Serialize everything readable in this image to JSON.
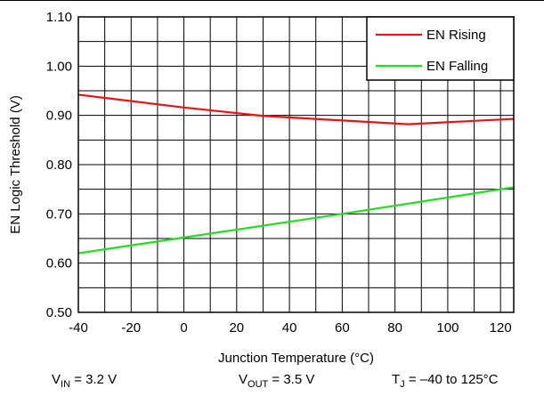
{
  "chart_data": {
    "type": "line",
    "title": "",
    "xlabel": "Junction Temperature (°C)",
    "ylabel": "EN Logic Threshold (V)",
    "xlim": [
      -40,
      125
    ],
    "ylim": [
      0.5,
      1.1
    ],
    "x_ticks": [
      -40,
      -20,
      0,
      20,
      40,
      60,
      80,
      100,
      120
    ],
    "x_tick_labels": [
      "-40",
      "-20",
      "0",
      "20",
      "40",
      "60",
      "80",
      "100",
      "120"
    ],
    "y_ticks": [
      0.5,
      0.6,
      0.7,
      0.8,
      0.9,
      1.0,
      1.1
    ],
    "y_tick_labels": [
      "0.50",
      "0.60",
      "0.70",
      "0.80",
      "0.90",
      "1.00",
      "1.10"
    ],
    "grid": true,
    "legend_position": "top-right",
    "series": [
      {
        "name": "EN Rising",
        "color": "#ee1111",
        "x": [
          -40,
          0,
          30,
          85,
          125
        ],
        "y": [
          0.942,
          0.916,
          0.899,
          0.882,
          0.893
        ]
      },
      {
        "name": "EN Falling",
        "color": "#22dd22",
        "x": [
          -40,
          0,
          60,
          125
        ],
        "y": [
          0.62,
          0.652,
          0.7,
          0.754
        ]
      }
    ]
  },
  "conditions": {
    "vin": {
      "symbol": "V",
      "sub": "IN",
      "value": " = 3.2 V"
    },
    "vout": {
      "symbol": "V",
      "sub": "OUT",
      "value": " = 3.5 V"
    },
    "tj": {
      "symbol": "T",
      "sub": "J",
      "value": " = –40 to 125°C"
    }
  }
}
